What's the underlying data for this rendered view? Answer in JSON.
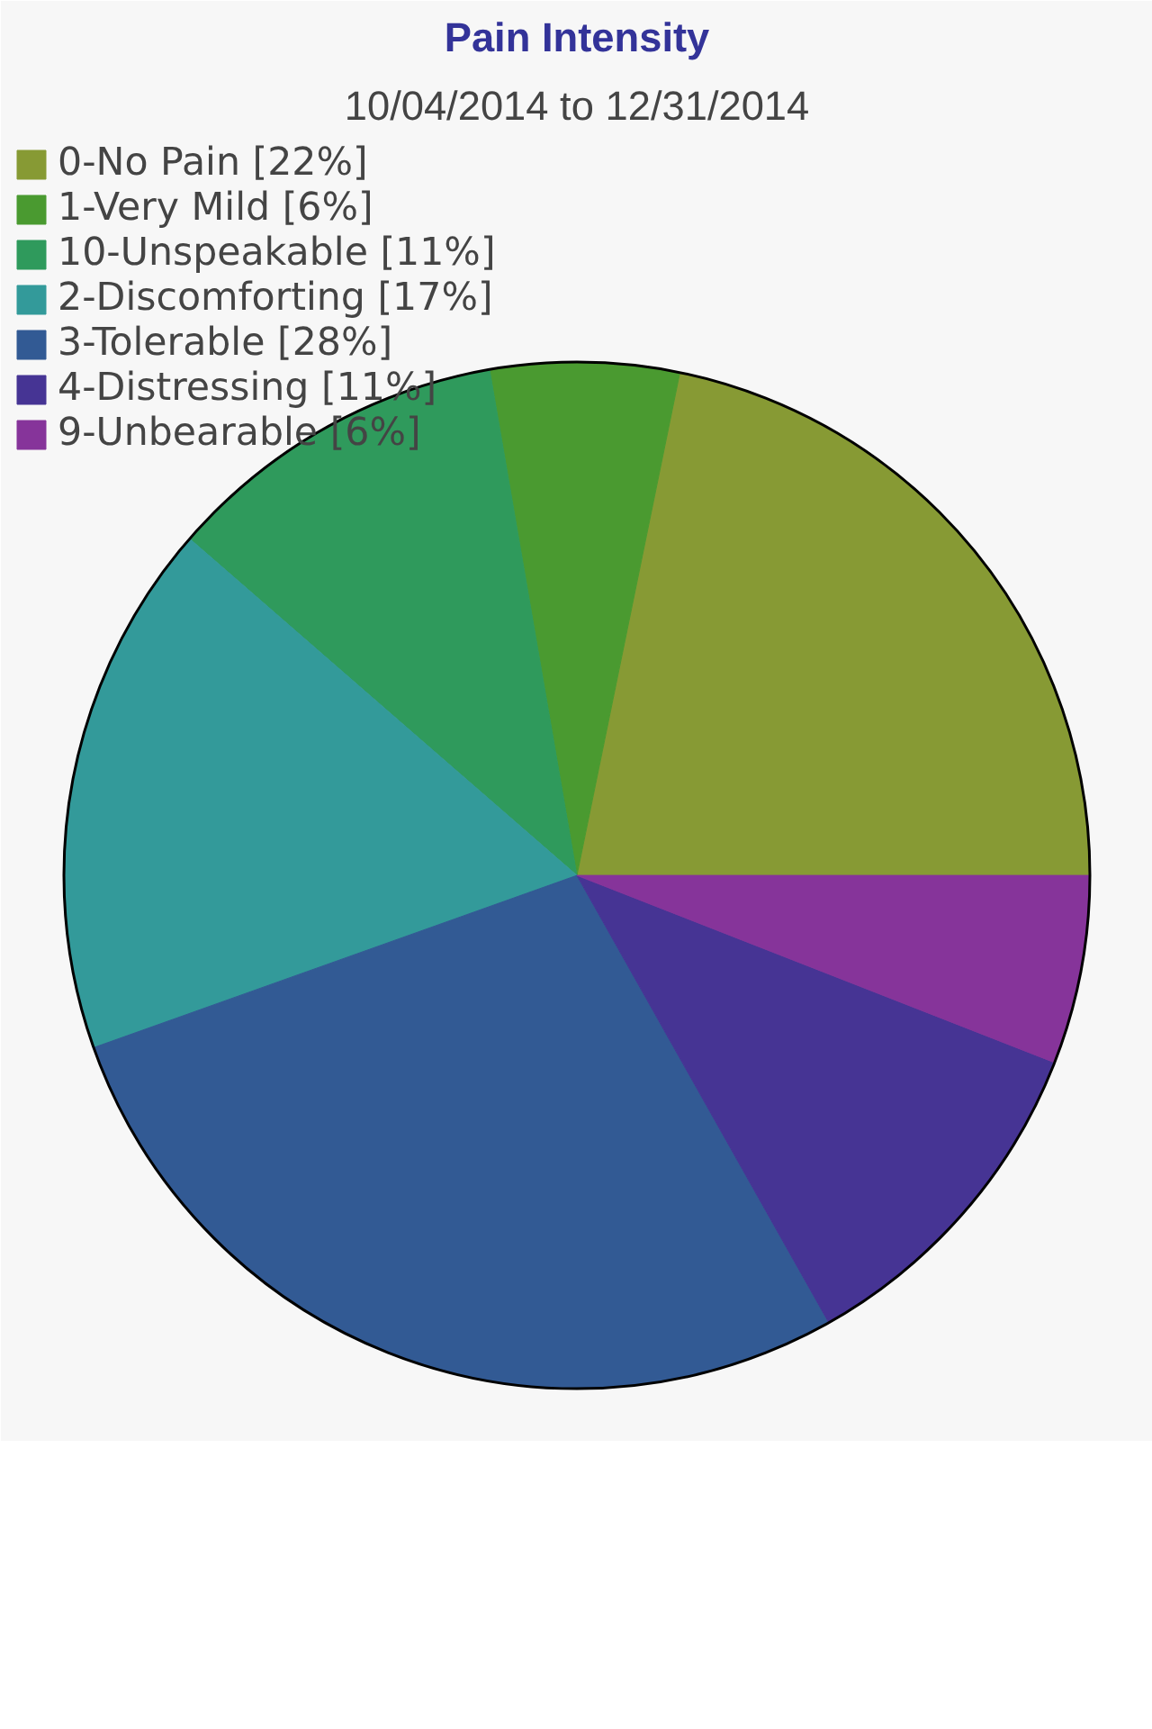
{
  "chart_data": {
    "type": "pie",
    "title": "Pain Intensity",
    "subtitle": "10/04/2014 to 12/31/2014",
    "categories": [
      "0-No Pain",
      "1-Very Mild",
      "10-Unspeakable",
      "2-Discomforting",
      "3-Tolerable",
      "4-Distressing",
      "9-Unbearable"
    ],
    "values": [
      22,
      6,
      11,
      17,
      28,
      11,
      6
    ],
    "value_labels": [
      "[22%]",
      "[6%]",
      "[11%]",
      "[17%]",
      "[28%]",
      "[11%]",
      "[6%]"
    ],
    "colors": [
      "#879a34",
      "#4a9a30",
      "#2f9a5c",
      "#339a9a",
      "#325a94",
      "#463494",
      "#86349a"
    ],
    "legend": "top left"
  }
}
